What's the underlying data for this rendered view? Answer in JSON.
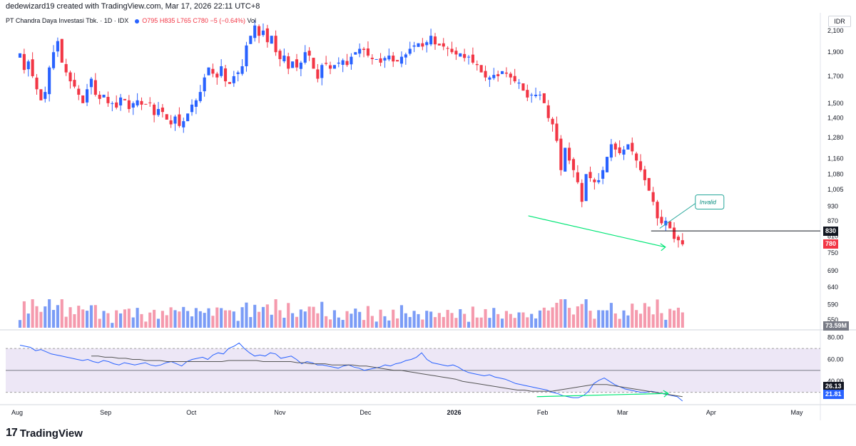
{
  "header": {
    "attribution": "dedewizard19 created with TradingView.com, Mar 17, 2026 22:11 UTC+8"
  },
  "legend": {
    "name": "PT Chandra Daya Investasi Tbk. · 1D · IDX",
    "open": "O795",
    "high": "H835",
    "low": "L765",
    "close": "C780",
    "change": "−5 (−0.64%)",
    "vol_label": "Vol"
  },
  "currency": "IDR",
  "price_axis": {
    "ticks": [
      2100,
      1900,
      1700,
      1500,
      1400,
      1280,
      1160,
      1080,
      1005,
      930,
      870,
      810,
      750,
      690,
      640,
      590,
      550
    ],
    "tick_labels": [
      "2,100",
      "1,900",
      "1,700",
      "1,500",
      "1,400",
      "1,280",
      "1,160",
      "1,080",
      "1,005",
      "930",
      "870",
      "810",
      "750",
      "690",
      "640",
      "590",
      "550"
    ]
  },
  "price_badges": {
    "level": "830",
    "last": "780",
    "volume": "73.59M"
  },
  "rsi_axis": {
    "tick_labels": [
      "80.00",
      "60.00",
      "40.00"
    ],
    "badges": [
      "26.13",
      "21.81"
    ]
  },
  "time_axis": {
    "labels": [
      "Aug",
      "Sep",
      "Oct",
      "Nov",
      "Dec",
      "2026",
      "Feb",
      "Mar",
      "Apr",
      "May"
    ]
  },
  "annotations": {
    "invalid_label": "Invalid"
  },
  "footer": {
    "brand": "TradingView",
    "mark": "17"
  },
  "colors": {
    "up": "#2962ff",
    "down": "#f23645",
    "up_vol": "#7b9cf6",
    "down_vol": "#f59aad",
    "rsi": "#2962ff",
    "rsi_ma": "#555555",
    "divergence": "#00e676",
    "rsi_band": "#ede7f6"
  },
  "chart_data": [
    {
      "type": "candlestick",
      "title": "PT Chandra Daya Investasi Tbk. · 1D · IDX",
      "y_scale": "log",
      "ylim": [
        530,
        2250
      ],
      "x_range": [
        "2025-07-28",
        "2026-05-08"
      ],
      "series": [
        {
          "closes": [
            1890,
            1750,
            1820,
            1700,
            1600,
            1520,
            1580,
            1770,
            1900,
            2000,
            1810,
            1730,
            1660,
            1620,
            1560,
            1500,
            1600,
            1680,
            1560,
            1530,
            1560,
            1500,
            1500,
            1470,
            1540,
            1520,
            1460,
            1500,
            1520,
            1490,
            1490,
            1500,
            1420,
            1460,
            1440,
            1390,
            1360,
            1410,
            1350,
            1380,
            1430,
            1490,
            1520,
            1580,
            1690,
            1770,
            1720,
            1690,
            1780,
            1660,
            1640,
            1700,
            1730,
            1780,
            1960,
            2050,
            2150,
            2050,
            2100,
            1990,
            2050,
            1900,
            1840,
            1870,
            1760,
            1820,
            1770,
            1810,
            1900,
            1870,
            1760,
            1680,
            1790,
            1800,
            1760,
            1790,
            1810,
            1830,
            1790,
            1860,
            1900,
            1930,
            1920,
            1870,
            1840,
            1840,
            1810,
            1850,
            1870,
            1820,
            1820,
            1860,
            1880,
            1930,
            1960,
            1980,
            1950,
            1990,
            2050,
            1970,
            1960,
            1950,
            1930,
            1900,
            1880,
            1890,
            1850,
            1860,
            1810,
            1790,
            1730,
            1690,
            1690,
            1710,
            1700,
            1740,
            1720,
            1690,
            1660,
            1650,
            1590,
            1540,
            1560,
            1560,
            1560,
            1500,
            1400,
            1360,
            1260,
            1100,
            1220,
            1150,
            1100,
            1040,
            950,
            1080,
            1060,
            1040,
            1050,
            1100,
            1170,
            1240,
            1210,
            1190,
            1210,
            1240,
            1200,
            1150,
            1100,
            1050,
            1000,
            950,
            880,
            860,
            870,
            840,
            800,
            795,
            780
          ]
        }
      ],
      "volume": {
        "unit": "M",
        "last": 73.59
      },
      "annotations": [
        {
          "type": "horizontal_line",
          "price": 830
        },
        {
          "type": "trendline",
          "from": {
            "x": "2026-01-27",
            "y": 890
          },
          "to": {
            "x": "2026-03-16",
            "y": 770
          }
        },
        {
          "type": "callout",
          "text": "Invalid",
          "target": {
            "x": "2026-03-14",
            "y": 840
          }
        }
      ]
    },
    {
      "type": "line",
      "title": "RSI",
      "ylim": [
        20,
        85
      ],
      "bands": [
        30,
        50,
        70
      ],
      "series": [
        {
          "values": [
            73,
            72,
            71,
            68,
            69,
            67,
            65,
            64,
            63,
            62,
            61,
            60,
            59,
            60,
            58,
            57,
            59,
            58,
            56,
            55,
            57,
            56,
            55,
            56,
            57,
            55,
            54,
            55,
            57,
            58,
            56,
            54,
            58,
            60,
            61,
            62,
            60,
            64,
            66,
            65,
            70,
            72,
            75,
            70,
            66,
            63,
            64,
            63,
            66,
            65,
            61,
            62,
            63,
            60,
            56,
            58,
            57,
            55,
            55,
            54,
            53,
            52,
            54,
            55,
            53,
            52,
            50,
            51,
            52,
            53,
            55,
            54,
            56,
            57,
            59,
            60,
            62,
            66,
            60,
            57,
            56,
            55,
            54,
            55,
            53,
            50,
            48,
            47,
            46,
            45,
            46,
            44,
            43,
            42,
            40,
            38,
            37,
            36,
            35,
            34,
            33,
            32,
            30,
            29,
            27,
            26,
            25,
            25,
            27,
            31,
            38,
            41,
            43,
            40,
            37,
            35,
            33,
            32,
            31,
            30,
            30,
            31,
            30,
            29,
            28,
            27,
            26,
            22
          ]
        },
        {
          "values": [
            63,
            63,
            62,
            62,
            61,
            61,
            60,
            60,
            59,
            59,
            59,
            58,
            58,
            58,
            58,
            58,
            58,
            58,
            58,
            58,
            59,
            59,
            59,
            59,
            59,
            58,
            58,
            58,
            58,
            58,
            57,
            57,
            56,
            56,
            56,
            55,
            55,
            55,
            55,
            54,
            54,
            53,
            52,
            51,
            50,
            50,
            49,
            48,
            47,
            46,
            45,
            44,
            43,
            42,
            40,
            39,
            38,
            37,
            36,
            35,
            34,
            33,
            32,
            32,
            31,
            31,
            31,
            31,
            32,
            33,
            34,
            35,
            36,
            37,
            37,
            37,
            36,
            35,
            34,
            33,
            32,
            31,
            30,
            29,
            28,
            27,
            26
          ]
        }
      ],
      "annotations": [
        {
          "type": "trendline",
          "from": {
            "x": "2026-01-30",
            "y": 26
          },
          "to": {
            "x": "2026-03-17",
            "y": 29
          }
        }
      ]
    }
  ]
}
